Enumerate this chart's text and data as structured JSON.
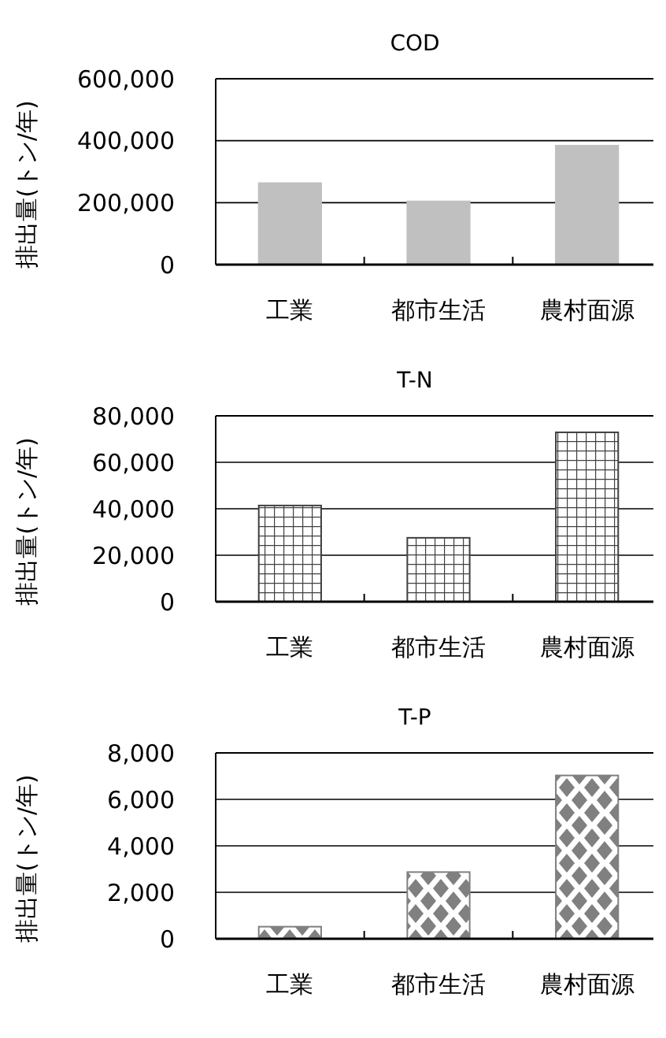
{
  "chart_data": [
    {
      "type": "bar",
      "title": "COD",
      "ylabel": "排出量(トン/年)",
      "categories": [
        "工業",
        "都市生活",
        "農村面源"
      ],
      "values": [
        263000,
        204000,
        384000
      ],
      "color": "#c0c0c0",
      "ylim": [
        0,
        600000
      ],
      "yticks": [
        {
          "value": 0,
          "label": "0"
        },
        {
          "value": 200000,
          "label": "200,000"
        },
        {
          "value": 400000,
          "label": "400,000"
        },
        {
          "value": 600000,
          "label": "600,000"
        }
      ],
      "grid": "y"
    },
    {
      "type": "bar",
      "title": "T-N",
      "ylabel": "排出量(トン/年)",
      "categories": [
        "工業",
        "都市生活",
        "農村面源"
      ],
      "values": [
        41400,
        27500,
        72900
      ],
      "color": "#404040",
      "ylim": [
        0,
        80000
      ],
      "yticks": [
        {
          "value": 0,
          "label": "0"
        },
        {
          "value": 20000,
          "label": "20,000"
        },
        {
          "value": 40000,
          "label": "40,000"
        },
        {
          "value": 60000,
          "label": "60,000"
        },
        {
          "value": 80000,
          "label": "80,000"
        }
      ],
      "grid": "y"
    },
    {
      "type": "bar",
      "title": "T-P",
      "ylabel": "排出量(トン/年)",
      "categories": [
        "工業",
        "都市生活",
        "農村面源"
      ],
      "values": [
        520,
        2870,
        7030
      ],
      "color": "#808080",
      "ylim": [
        0,
        8000
      ],
      "yticks": [
        {
          "value": 0,
          "label": "0"
        },
        {
          "value": 2000,
          "label": "2,000"
        },
        {
          "value": 4000,
          "label": "4,000"
        },
        {
          "value": 6000,
          "label": "6,000"
        },
        {
          "value": 8000,
          "label": "8,000"
        }
      ],
      "grid": "y"
    }
  ]
}
